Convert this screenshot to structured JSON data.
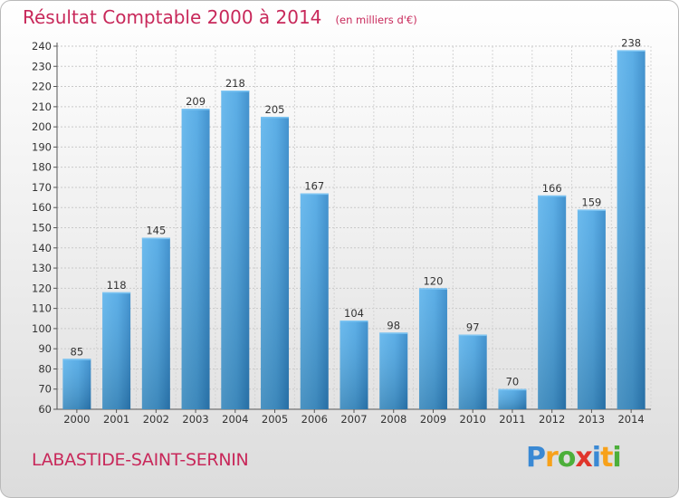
{
  "title": "Résultat Comptable 2000 à 2014",
  "unit": "(en milliers d'€)",
  "commune": "LABASTIDE-SAINT-SERNIN",
  "logo": "Proxiti",
  "colors": {
    "bar": "#3d9ad9",
    "bar_light": "#5cb3ec",
    "bar_dark": "#2876b8",
    "title": "#c8285a"
  },
  "chart_data": {
    "type": "bar",
    "categories": [
      "2000",
      "2001",
      "2002",
      "2003",
      "2004",
      "2005",
      "2006",
      "2007",
      "2008",
      "2009",
      "2010",
      "2011",
      "2012",
      "2013",
      "2014"
    ],
    "values": [
      85,
      118,
      145,
      209,
      218,
      205,
      167,
      104,
      98,
      120,
      97,
      70,
      166,
      159,
      238
    ],
    "ylim": [
      60,
      240
    ],
    "yticks": [
      60,
      70,
      80,
      90,
      100,
      110,
      120,
      130,
      140,
      150,
      160,
      170,
      180,
      190,
      200,
      210,
      220,
      230,
      240
    ],
    "grid": true
  }
}
